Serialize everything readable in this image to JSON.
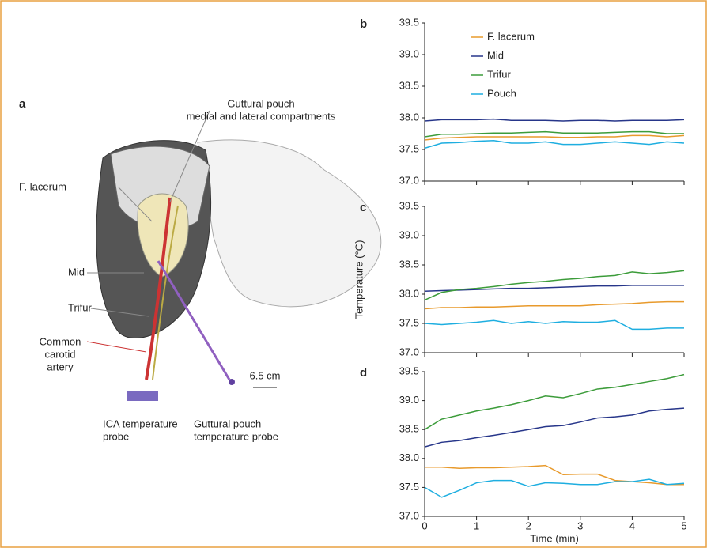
{
  "panel_a": {
    "panel": "a",
    "labels": {
      "pouch": [
        "Guttural pouch",
        "medial and lateral compartments"
      ],
      "lacerum": [
        "F. lacerum"
      ],
      "mid": [
        "Mid"
      ],
      "trifur": [
        "Trifur"
      ],
      "carotid": [
        "Common",
        "carotid",
        "artery"
      ],
      "scale": [
        "6.5 cm"
      ],
      "ica_probe": [
        "ICA temperature",
        "probe"
      ],
      "pouch_probe": [
        "Guttural pouch",
        "temperature probe"
      ]
    }
  },
  "chart_data": [
    {
      "type": "line",
      "panel": "b",
      "x": [
        0,
        0.33,
        0.67,
        1,
        1.33,
        1.67,
        2,
        2.33,
        2.67,
        3,
        3.33,
        3.67,
        4,
        4.33,
        4.67,
        5
      ],
      "xlim": [
        0,
        5
      ],
      "xticks": [
        0,
        1,
        2,
        3,
        4,
        5
      ],
      "ylim": [
        37,
        39.5
      ],
      "yticks": [
        {
          "value": 37,
          "label": "37.0"
        },
        37.5,
        {
          "value": 38,
          "label": "38.0"
        },
        38.5,
        {
          "value": 39,
          "label": "39.0"
        },
        39.5
      ],
      "legend": "top-left",
      "series": [
        {
          "name": "F. lacerum",
          "color": "#e89a2c",
          "values": [
            37.65,
            37.68,
            37.69,
            37.7,
            37.7,
            37.7,
            37.7,
            37.7,
            37.69,
            37.69,
            37.7,
            37.7,
            37.72,
            37.72,
            37.7,
            37.72
          ]
        },
        {
          "name": "Mid",
          "color": "#27368a",
          "values": [
            37.95,
            37.97,
            37.97,
            37.97,
            37.98,
            37.96,
            37.96,
            37.96,
            37.95,
            37.96,
            37.96,
            37.95,
            37.96,
            37.96,
            37.96,
            37.97
          ]
        },
        {
          "name": "Trifur",
          "color": "#3c9c3a",
          "values": [
            37.7,
            37.74,
            37.74,
            37.75,
            37.76,
            37.76,
            37.77,
            37.78,
            37.76,
            37.76,
            37.76,
            37.77,
            37.78,
            37.78,
            37.75,
            37.75
          ]
        },
        {
          "name": "Pouch",
          "color": "#1eaee0",
          "values": [
            37.52,
            37.6,
            37.61,
            37.63,
            37.64,
            37.6,
            37.6,
            37.62,
            37.58,
            37.58,
            37.6,
            37.62,
            37.6,
            37.58,
            37.62,
            37.6
          ]
        }
      ]
    },
    {
      "type": "line",
      "panel": "c",
      "ylabel": "Temperature (°C)",
      "x": [
        0,
        0.33,
        0.67,
        1,
        1.33,
        1.67,
        2,
        2.33,
        2.67,
        3,
        3.33,
        3.67,
        4,
        4.33,
        4.67,
        5
      ],
      "xlim": [
        0,
        5
      ],
      "xticks": [
        0,
        1,
        2,
        3,
        4,
        5
      ],
      "ylim": [
        37,
        39.5
      ],
      "yticks": [
        {
          "value": 37,
          "label": "37.0"
        },
        37.5,
        {
          "value": 38,
          "label": "38.0"
        },
        38.5,
        {
          "value": 39,
          "label": "39.0"
        },
        39.5
      ],
      "series": [
        {
          "name": "F. lacerum",
          "color": "#e89a2c",
          "values": [
            37.75,
            37.77,
            37.77,
            37.78,
            37.78,
            37.79,
            37.8,
            37.8,
            37.8,
            37.8,
            37.82,
            37.83,
            37.84,
            37.86,
            37.87,
            37.87
          ]
        },
        {
          "name": "Mid",
          "color": "#27368a",
          "values": [
            38.05,
            38.06,
            38.07,
            38.08,
            38.09,
            38.1,
            38.1,
            38.11,
            38.12,
            38.13,
            38.14,
            38.14,
            38.15,
            38.15,
            38.15,
            38.15
          ]
        },
        {
          "name": "Trifur",
          "color": "#3c9c3a",
          "values": [
            37.9,
            38.03,
            38.08,
            38.1,
            38.13,
            38.17,
            38.2,
            38.22,
            38.25,
            38.27,
            38.3,
            38.32,
            38.38,
            38.35,
            38.37,
            38.4
          ]
        },
        {
          "name": "Pouch",
          "color": "#1eaee0",
          "values": [
            37.5,
            37.48,
            37.5,
            37.52,
            37.55,
            37.5,
            37.53,
            37.5,
            37.53,
            37.52,
            37.52,
            37.55,
            37.4,
            37.4,
            37.42,
            37.42
          ]
        }
      ]
    },
    {
      "type": "line",
      "panel": "d",
      "xlabel": "Time (min)",
      "x": [
        0,
        0.33,
        0.67,
        1,
        1.33,
        1.67,
        2,
        2.33,
        2.67,
        3,
        3.33,
        3.67,
        4,
        4.33,
        4.67,
        5
      ],
      "xlim": [
        0,
        5
      ],
      "xticks": [
        0,
        1,
        2,
        3,
        4,
        5
      ],
      "xtick_labels": true,
      "ylim": [
        37,
        39.5
      ],
      "yticks": [
        {
          "value": 37,
          "label": "37.0"
        },
        37.5,
        {
          "value": 38,
          "label": "38.0"
        },
        38.5,
        {
          "value": 39,
          "label": "39.0"
        },
        39.5
      ],
      "series": [
        {
          "name": "F. lacerum",
          "color": "#e89a2c",
          "values": [
            37.85,
            37.85,
            37.83,
            37.84,
            37.84,
            37.85,
            37.86,
            37.88,
            37.72,
            37.73,
            37.73,
            37.62,
            37.6,
            37.58,
            37.55,
            37.55
          ]
        },
        {
          "name": "Mid",
          "color": "#27368a",
          "values": [
            38.2,
            38.28,
            38.31,
            38.36,
            38.4,
            38.45,
            38.5,
            38.55,
            38.57,
            38.63,
            38.7,
            38.72,
            38.75,
            38.82,
            38.85,
            38.87
          ]
        },
        {
          "name": "Trifur",
          "color": "#3c9c3a",
          "values": [
            38.5,
            38.68,
            38.75,
            38.82,
            38.87,
            38.93,
            39.0,
            39.08,
            39.05,
            39.12,
            39.2,
            39.23,
            39.28,
            39.33,
            39.38,
            39.45
          ]
        },
        {
          "name": "Pouch",
          "color": "#1eaee0",
          "values": [
            37.5,
            37.33,
            37.45,
            37.58,
            37.62,
            37.62,
            37.52,
            37.58,
            37.57,
            37.55,
            37.55,
            37.6,
            37.6,
            37.64,
            37.55,
            37.57
          ]
        }
      ]
    }
  ]
}
